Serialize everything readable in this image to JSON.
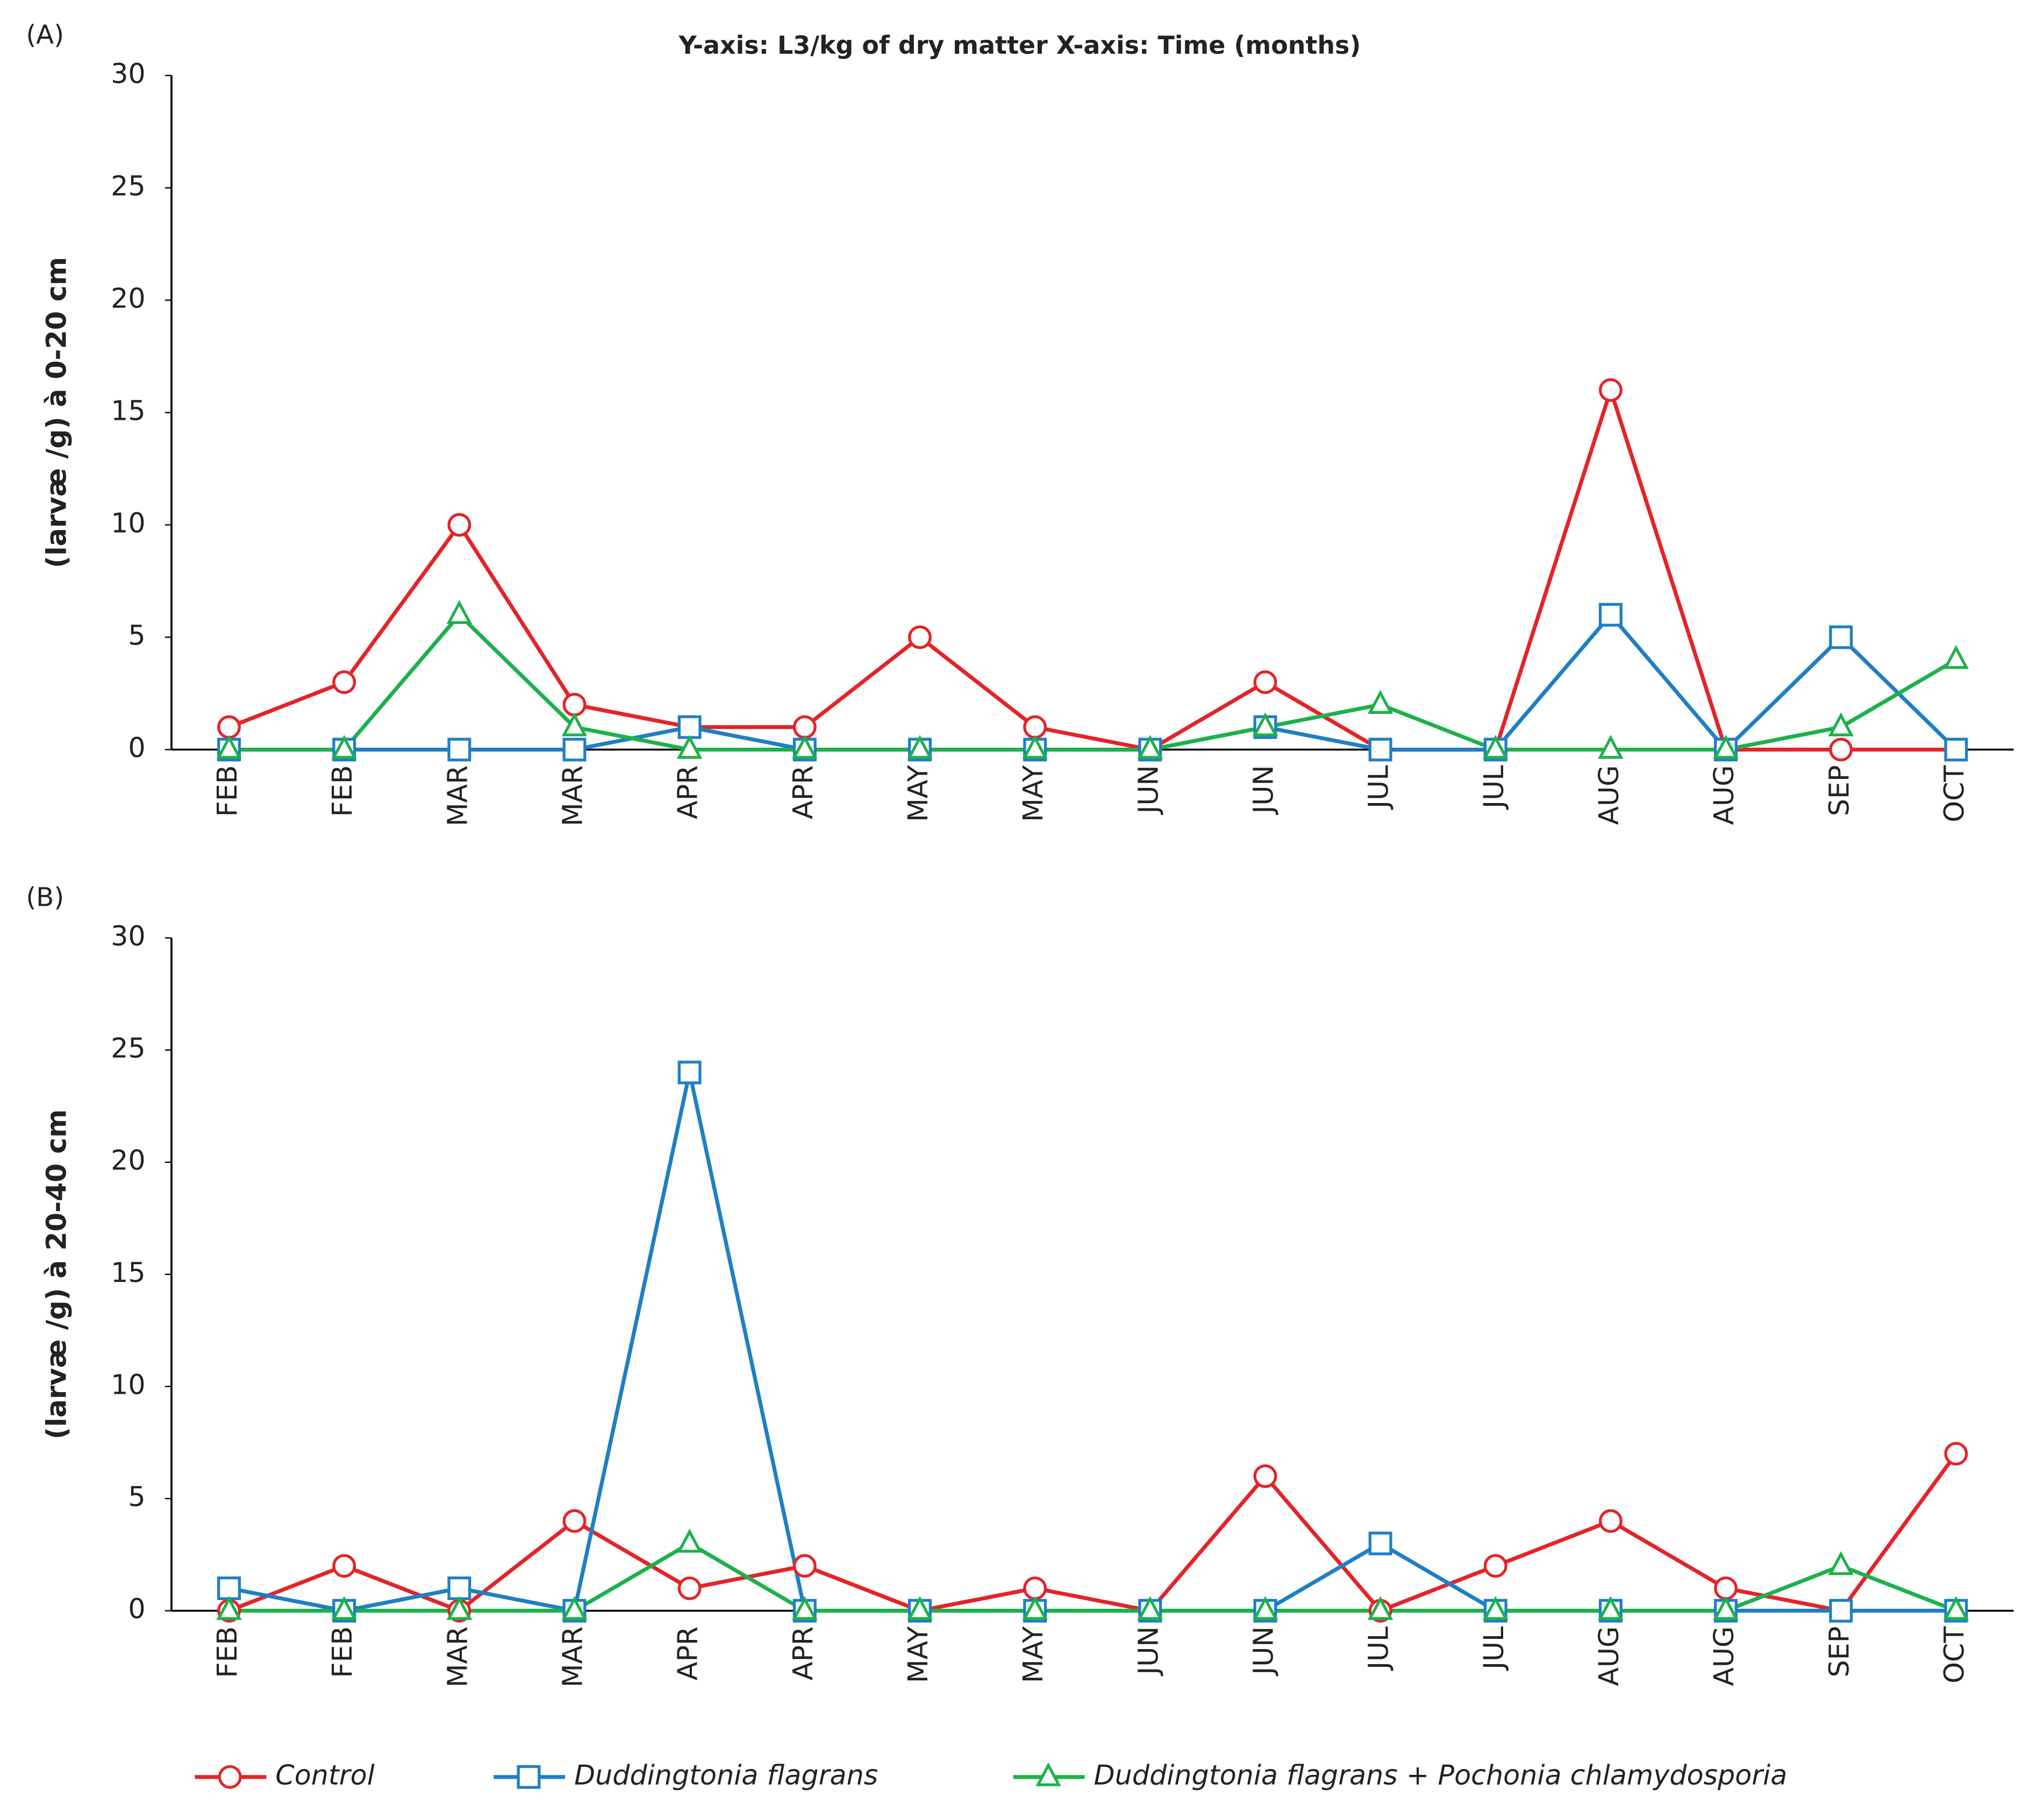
{
  "chart_data": [
    {
      "type": "line",
      "panel": "(A)",
      "title": "Y-axis: L3/kg of dry matter X-axis: Time (months)",
      "y_label": "(larvæ /g) à 0-20 cm",
      "categories": [
        "FEB",
        "FEB",
        "MAR",
        "MAR",
        "APR",
        "APR",
        "MAY",
        "MAY",
        "JUN",
        "JUN",
        "JUL",
        "JUL",
        "AUG",
        "AUG",
        "SEP",
        "OCT"
      ],
      "ylim": [
        0,
        30
      ],
      "yticks": [
        0,
        5,
        10,
        15,
        20,
        25,
        30
      ],
      "grid": false,
      "series": [
        {
          "name": "Control",
          "color": "#e32428",
          "marker": "circle",
          "values": [
            1,
            3,
            10,
            2,
            1,
            1,
            5,
            1,
            0,
            3,
            0,
            0,
            16,
            0,
            0,
            0
          ]
        },
        {
          "name": "Duddingtonia flagrans",
          "color": "#1f7fc4",
          "marker": "square",
          "values": [
            0,
            0,
            0,
            0,
            1,
            0,
            0,
            0,
            0,
            1,
            0,
            0,
            6,
            0,
            5,
            0
          ]
        },
        {
          "name": "Duddingtonia flagrans + Pochonia chlamydosporia",
          "color": "#1db14b",
          "marker": "triangle",
          "values": [
            0,
            0,
            6,
            1,
            0,
            0,
            0,
            0,
            0,
            1,
            2,
            0,
            0,
            0,
            1,
            4
          ]
        }
      ]
    },
    {
      "type": "line",
      "panel": "(B)",
      "y_label": "(larvæ /g) à 20-40 cm",
      "categories": [
        "FEB",
        "FEB",
        "MAR",
        "MAR",
        "APR",
        "APR",
        "MAY",
        "MAY",
        "JUN",
        "JUN",
        "JUL",
        "JUL",
        "AUG",
        "AUG",
        "SEP",
        "OCT"
      ],
      "ylim": [
        0,
        30
      ],
      "yticks": [
        0,
        5,
        10,
        15,
        20,
        25,
        30
      ],
      "grid": false,
      "legend": "bottom",
      "series": [
        {
          "name": "Control",
          "color": "#e32428",
          "marker": "circle",
          "values": [
            0,
            2,
            0,
            4,
            1,
            2,
            0,
            1,
            0,
            6,
            0,
            2,
            4,
            1,
            0,
            7
          ]
        },
        {
          "name": "Duddingtonia flagrans",
          "color": "#1f7fc4",
          "marker": "square",
          "values": [
            1,
            0,
            1,
            0,
            24,
            0,
            0,
            0,
            0,
            0,
            3,
            0,
            0,
            0,
            0,
            0
          ]
        },
        {
          "name": "Duddingtonia flagrans + Pochonia chlamydosporia",
          "color": "#1db14b",
          "marker": "triangle",
          "values": [
            0,
            0,
            0,
            0,
            3,
            0,
            0,
            0,
            0,
            0,
            0,
            0,
            0,
            0,
            2,
            0
          ]
        }
      ]
    }
  ]
}
